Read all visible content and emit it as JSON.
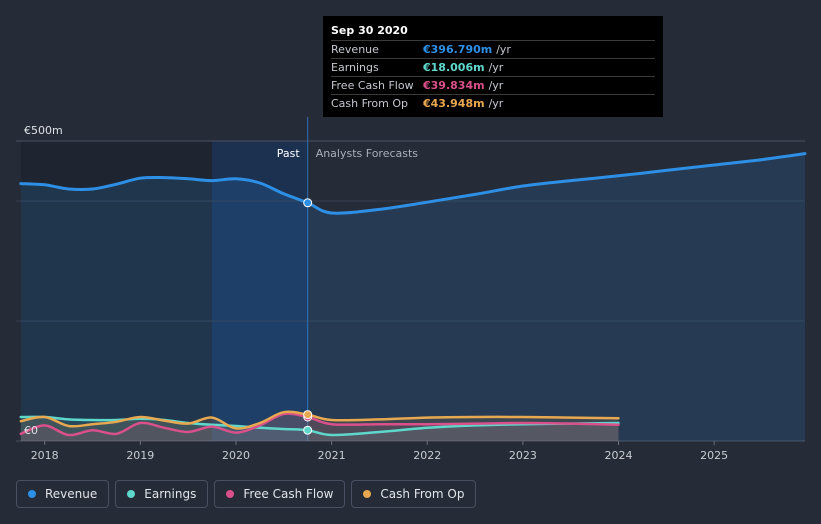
{
  "tooltip": {
    "date": "Sep 30 2020",
    "rows": [
      {
        "label": "Revenue",
        "value": "€396.790m",
        "unit": "/yr",
        "color": "#2d8fe5"
      },
      {
        "label": "Earnings",
        "value": "€18.006m",
        "unit": "/yr",
        "color": "#5fd8cc"
      },
      {
        "label": "Free Cash Flow",
        "value": "€39.834m",
        "unit": "/yr",
        "color": "#d9508a"
      },
      {
        "label": "Cash From Op",
        "value": "€43.948m",
        "unit": "/yr",
        "color": "#e8a850"
      }
    ]
  },
  "legend": [
    {
      "label": "Revenue",
      "color": "#2d8fe5"
    },
    {
      "label": "Earnings",
      "color": "#5fd8cc"
    },
    {
      "label": "Free Cash Flow",
      "color": "#d9508a"
    },
    {
      "label": "Cash From Op",
      "color": "#e8a850"
    }
  ],
  "chart_data": {
    "type": "line",
    "title": "",
    "xlabel": "",
    "ylabel": "",
    "ylim": [
      0,
      500
    ],
    "xlim": [
      2017.7,
      2025.95
    ],
    "y_ticks": [
      {
        "value": 500,
        "label": "€500m"
      },
      {
        "value": 0,
        "label": "€0"
      }
    ],
    "x_ticks": [
      2018,
      2019,
      2020,
      2021,
      2022,
      2023,
      2024,
      2025
    ],
    "past_label": "Past",
    "forecast_label": "Analysts Forecasts",
    "divider_x": 2020.75,
    "series": [
      {
        "name": "Revenue",
        "color": "#2d8fe5",
        "x": [
          2017.75,
          2018.0,
          2018.25,
          2018.5,
          2018.75,
          2019.0,
          2019.25,
          2019.5,
          2019.75,
          2020.0,
          2020.25,
          2020.5,
          2020.75,
          2021.0,
          2021.5,
          2022.0,
          2022.5,
          2023.0,
          2023.5,
          2024.0,
          2024.5,
          2025.0,
          2025.5,
          2025.95
        ],
        "y": [
          429,
          427,
          420,
          420,
          428,
          438,
          439,
          437,
          434,
          437,
          430,
          412,
          397,
          380,
          386,
          398,
          411,
          425,
          434,
          442,
          451,
          460,
          469,
          479
        ]
      },
      {
        "name": "Earnings",
        "color": "#5fd8cc",
        "x": [
          2017.75,
          2018.0,
          2018.25,
          2018.5,
          2018.75,
          2019.0,
          2019.25,
          2019.5,
          2019.75,
          2020.0,
          2020.25,
          2020.5,
          2020.75,
          2021.0,
          2021.5,
          2022.0,
          2022.5,
          2023.0,
          2023.5,
          2024.0
        ],
        "y": [
          40,
          40,
          36,
          35,
          35,
          37,
          35,
          30,
          27,
          25,
          22,
          20,
          18,
          10,
          15,
          22,
          26,
          28,
          29,
          30
        ]
      },
      {
        "name": "Free Cash Flow",
        "color": "#d9508a",
        "x": [
          2017.75,
          2018.0,
          2018.25,
          2018.5,
          2018.75,
          2019.0,
          2019.25,
          2019.5,
          2019.75,
          2020.0,
          2020.25,
          2020.5,
          2020.75,
          2021.0,
          2021.5,
          2022.0,
          2022.5,
          2023.0,
          2023.5,
          2024.0
        ],
        "y": [
          12,
          26,
          10,
          18,
          12,
          30,
          22,
          15,
          24,
          14,
          26,
          45,
          40,
          28,
          28,
          28,
          29,
          30,
          29,
          27
        ]
      },
      {
        "name": "Cash From Op",
        "color": "#e8a850",
        "x": [
          2017.75,
          2018.0,
          2018.25,
          2018.5,
          2018.75,
          2019.0,
          2019.25,
          2019.5,
          2019.75,
          2020.0,
          2020.25,
          2020.5,
          2020.75,
          2021.0,
          2021.5,
          2022.0,
          2022.5,
          2023.0,
          2023.5,
          2024.0
        ],
        "y": [
          33,
          40,
          25,
          28,
          32,
          40,
          34,
          29,
          39,
          21,
          30,
          48,
          44,
          35,
          36,
          39,
          40,
          40,
          39,
          38
        ]
      }
    ],
    "highlight_points": [
      {
        "series": "Revenue",
        "x": 2020.75,
        "y": 397
      },
      {
        "series": "Earnings",
        "x": 2020.75,
        "y": 18
      },
      {
        "series": "Free Cash Flow",
        "x": 2020.75,
        "y": 40
      },
      {
        "series": "Cash From Op",
        "x": 2020.75,
        "y": 44
      }
    ]
  }
}
